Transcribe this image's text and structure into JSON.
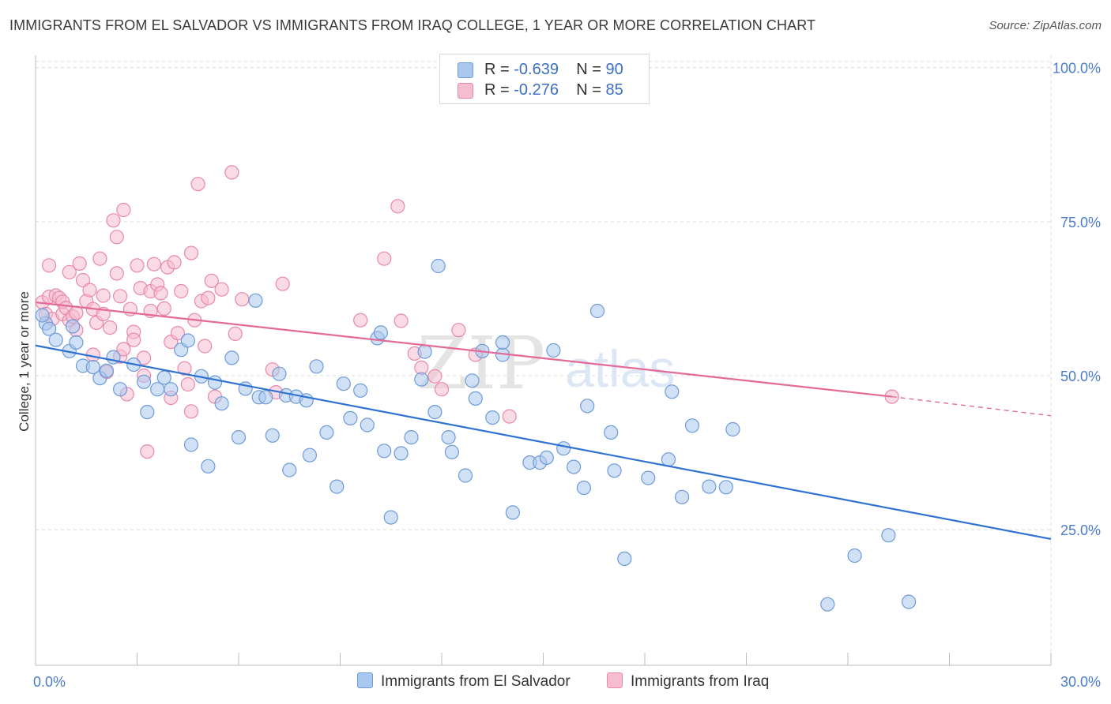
{
  "title": "IMMIGRANTS FROM EL SALVADOR VS IMMIGRANTS FROM IRAQ COLLEGE, 1 YEAR OR MORE CORRELATION CHART",
  "source": "Source: ZipAtlas.com",
  "watermark": {
    "zip": "ZIP",
    "atlas": "atlas"
  },
  "colors": {
    "blue_fill": "#a9c8ef",
    "blue_stroke": "#6e9ad8",
    "blue_line": "#2f72d2",
    "pink_fill": "#f6bccf",
    "pink_stroke": "#e889a8",
    "pink_line": "#e46a97",
    "axis_text": "#4a7cc9",
    "grid": "#dcdcdc"
  },
  "legend_stats": [
    {
      "r_label": "R =",
      "r_value": "-0.639",
      "n_label": "N =",
      "n_value": "90"
    },
    {
      "r_label": "R =",
      "r_value": "-0.276",
      "n_label": "N =",
      "n_value": "85"
    }
  ],
  "chart_data": {
    "type": "scatter",
    "title": "IMMIGRANTS FROM EL SALVADOR VS IMMIGRANTS FROM IRAQ COLLEGE, 1 YEAR OR MORE CORRELATION CHART",
    "xlabel": "",
    "ylabel": "College, 1 year or more",
    "xlim": [
      0,
      30
    ],
    "ylim": [
      3,
      102
    ],
    "x_tick_labels": [
      "0.0%",
      "30.0%"
    ],
    "y_ticks": [
      25,
      50,
      75,
      100
    ],
    "y_tick_labels": [
      "25.0%",
      "50.0%",
      "75.0%",
      "100.0%"
    ],
    "grid": true,
    "legend_position": "bottom",
    "series": [
      {
        "name": "Immigrants from El Salvador",
        "trend": {
          "x": [
            0,
            30
          ],
          "y": [
            54.9,
            23.5
          ]
        },
        "points": [
          [
            0.3,
            58.5
          ],
          [
            0.4,
            57.6
          ],
          [
            0.6,
            55.8
          ],
          [
            1.0,
            54.0
          ],
          [
            1.2,
            55.4
          ],
          [
            1.4,
            51.6
          ],
          [
            1.7,
            51.4
          ],
          [
            1.9,
            49.6
          ],
          [
            2.1,
            50.8
          ],
          [
            2.3,
            53.0
          ],
          [
            2.5,
            47.8
          ],
          [
            2.9,
            51.8
          ],
          [
            3.2,
            49.0
          ],
          [
            3.3,
            44.1
          ],
          [
            3.6,
            47.8
          ],
          [
            3.8,
            49.7
          ],
          [
            4.0,
            47.8
          ],
          [
            4.3,
            54.2
          ],
          [
            4.5,
            55.7
          ],
          [
            4.6,
            38.8
          ],
          [
            4.9,
            49.9
          ],
          [
            5.1,
            35.3
          ],
          [
            5.3,
            48.9
          ],
          [
            5.5,
            45.5
          ],
          [
            5.8,
            52.9
          ],
          [
            6.0,
            40.0
          ],
          [
            6.2,
            47.9
          ],
          [
            6.5,
            62.2
          ],
          [
            6.6,
            46.5
          ],
          [
            6.8,
            46.5
          ],
          [
            7.0,
            40.3
          ],
          [
            7.2,
            50.3
          ],
          [
            7.4,
            46.8
          ],
          [
            7.5,
            34.7
          ],
          [
            7.7,
            46.6
          ],
          [
            8.0,
            46.0
          ],
          [
            8.1,
            37.1
          ],
          [
            8.3,
            51.5
          ],
          [
            8.6,
            40.8
          ],
          [
            8.9,
            32.0
          ],
          [
            9.1,
            48.7
          ],
          [
            9.3,
            43.1
          ],
          [
            9.6,
            47.6
          ],
          [
            9.8,
            42.0
          ],
          [
            10.1,
            56.1
          ],
          [
            10.2,
            57.0
          ],
          [
            10.3,
            37.8
          ],
          [
            10.5,
            27.0
          ],
          [
            10.8,
            37.4
          ],
          [
            11.1,
            40.0
          ],
          [
            11.4,
            49.4
          ],
          [
            11.5,
            53.9
          ],
          [
            11.8,
            44.1
          ],
          [
            11.9,
            67.8
          ],
          [
            12.2,
            40.0
          ],
          [
            12.3,
            37.6
          ],
          [
            12.7,
            33.8
          ],
          [
            12.9,
            49.2
          ],
          [
            13.0,
            46.3
          ],
          [
            13.2,
            54.0
          ],
          [
            13.5,
            43.2
          ],
          [
            13.8,
            53.4
          ],
          [
            13.8,
            55.4
          ],
          [
            14.1,
            27.8
          ],
          [
            14.6,
            35.9
          ],
          [
            14.9,
            35.9
          ],
          [
            15.1,
            36.7
          ],
          [
            15.3,
            54.1
          ],
          [
            15.6,
            38.2
          ],
          [
            15.9,
            35.2
          ],
          [
            16.2,
            31.8
          ],
          [
            16.3,
            45.1
          ],
          [
            16.6,
            60.5
          ],
          [
            17.0,
            40.8
          ],
          [
            17.1,
            34.6
          ],
          [
            17.4,
            20.3
          ],
          [
            18.1,
            33.4
          ],
          [
            18.7,
            36.4
          ],
          [
            18.8,
            47.4
          ],
          [
            19.1,
            30.3
          ],
          [
            19.4,
            41.9
          ],
          [
            19.9,
            32.0
          ],
          [
            20.4,
            31.9
          ],
          [
            20.6,
            41.3
          ],
          [
            23.4,
            12.9
          ],
          [
            24.2,
            20.8
          ],
          [
            25.2,
            24.1
          ],
          [
            25.8,
            13.3
          ],
          [
            0.2,
            59.8
          ],
          [
            1.1,
            58.0
          ]
        ]
      },
      {
        "name": "Immigrants from Iraq",
        "trend": {
          "x": [
            0,
            25.3
          ],
          "y": [
            61.9,
            46.6
          ]
        },
        "trend_extension": {
          "x": [
            25.3,
            30
          ],
          "y": [
            46.6,
            43.5
          ]
        },
        "points": [
          [
            0.2,
            61.9
          ],
          [
            0.3,
            60.0
          ],
          [
            0.4,
            62.8
          ],
          [
            0.4,
            67.9
          ],
          [
            0.5,
            59.2
          ],
          [
            0.6,
            63.0
          ],
          [
            0.7,
            62.6
          ],
          [
            0.8,
            60.0
          ],
          [
            0.8,
            62.0
          ],
          [
            0.9,
            61.0
          ],
          [
            1.0,
            59.0
          ],
          [
            1.0,
            66.8
          ],
          [
            1.1,
            59.6
          ],
          [
            1.2,
            60.2
          ],
          [
            1.2,
            57.4
          ],
          [
            1.3,
            68.2
          ],
          [
            1.4,
            65.5
          ],
          [
            1.5,
            62.1
          ],
          [
            1.6,
            63.9
          ],
          [
            1.7,
            53.4
          ],
          [
            1.7,
            60.8
          ],
          [
            1.8,
            58.6
          ],
          [
            1.9,
            69.0
          ],
          [
            2.0,
            63.0
          ],
          [
            2.0,
            60.0
          ],
          [
            2.1,
            50.6
          ],
          [
            2.2,
            57.8
          ],
          [
            2.3,
            75.2
          ],
          [
            2.4,
            66.6
          ],
          [
            2.4,
            72.5
          ],
          [
            2.5,
            62.9
          ],
          [
            2.5,
            53.1
          ],
          [
            2.6,
            76.9
          ],
          [
            2.6,
            54.3
          ],
          [
            2.7,
            47.0
          ],
          [
            2.8,
            60.8
          ],
          [
            2.9,
            57.1
          ],
          [
            2.9,
            55.8
          ],
          [
            3.0,
            67.9
          ],
          [
            3.1,
            64.2
          ],
          [
            3.2,
            52.9
          ],
          [
            3.2,
            50.0
          ],
          [
            3.3,
            37.7
          ],
          [
            3.4,
            60.5
          ],
          [
            3.4,
            63.7
          ],
          [
            3.5,
            68.1
          ],
          [
            3.6,
            64.8
          ],
          [
            3.7,
            63.4
          ],
          [
            3.8,
            60.9
          ],
          [
            3.9,
            67.6
          ],
          [
            4.0,
            55.5
          ],
          [
            4.0,
            46.4
          ],
          [
            4.1,
            68.4
          ],
          [
            4.2,
            56.9
          ],
          [
            4.3,
            63.7
          ],
          [
            4.4,
            51.2
          ],
          [
            4.5,
            48.6
          ],
          [
            4.6,
            69.9
          ],
          [
            4.6,
            44.2
          ],
          [
            4.7,
            59.0
          ],
          [
            4.8,
            81.1
          ],
          [
            4.9,
            62.1
          ],
          [
            5.0,
            54.8
          ],
          [
            5.1,
            62.6
          ],
          [
            5.2,
            65.4
          ],
          [
            5.3,
            46.6
          ],
          [
            5.5,
            64.0
          ],
          [
            5.8,
            83.0
          ],
          [
            5.9,
            56.8
          ],
          [
            6.1,
            62.4
          ],
          [
            7.0,
            51.0
          ],
          [
            7.1,
            47.3
          ],
          [
            7.3,
            64.9
          ],
          [
            9.6,
            59.0
          ],
          [
            10.3,
            69.0
          ],
          [
            10.7,
            77.5
          ],
          [
            10.8,
            58.9
          ],
          [
            11.2,
            53.6
          ],
          [
            11.4,
            51.3
          ],
          [
            11.8,
            49.9
          ],
          [
            12.0,
            47.8
          ],
          [
            12.5,
            57.4
          ],
          [
            13.0,
            53.4
          ],
          [
            14.0,
            43.4
          ],
          [
            25.3,
            46.6
          ]
        ]
      }
    ]
  }
}
